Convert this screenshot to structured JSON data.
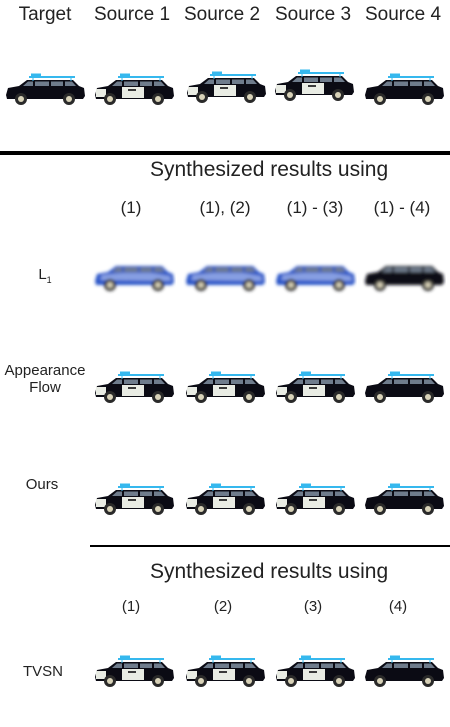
{
  "header": {
    "columns": [
      "Target",
      "Source 1",
      "Source 2",
      "Source 3",
      "Source 4"
    ]
  },
  "section1": {
    "title": "Synthesized results using",
    "columns": [
      "(1)",
      "(1), (2)",
      "(1) - (3)",
      "(1) - (4)"
    ],
    "rows": [
      {
        "label": "L",
        "sub": "1",
        "variant": "blur"
      },
      {
        "label_line1": "Appearance",
        "label_line2": "Flow",
        "variant": "police"
      },
      {
        "label": "Ours",
        "variant": "police"
      }
    ]
  },
  "section2": {
    "title": "Synthesized results using",
    "columns": [
      "(1)",
      "(2)",
      "(3)",
      "(4)"
    ],
    "rows": [
      {
        "label": "TVSN",
        "variant": "police"
      }
    ]
  },
  "colors": {
    "car_body": "#0b0b14",
    "car_white": "#e9ece4",
    "roof_light": "#35b8ee",
    "blur_blue": "#2a56c8",
    "wheel": "#2a2a2a",
    "hub": "#d8d2b8"
  }
}
